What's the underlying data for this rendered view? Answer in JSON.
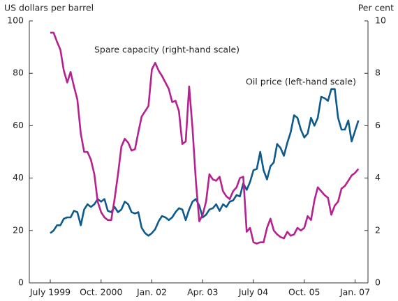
{
  "chart_data": {
    "type": "line",
    "y_label": "US dollars per barrel",
    "y2_label": "Per cent",
    "annotations": [
      "Spare capacity (right-hand scale)",
      "Oil price (left-hand scale)"
    ],
    "categories": [
      "July 1999",
      null,
      null,
      null,
      null,
      null,
      null,
      null,
      null,
      null,
      null,
      null,
      null,
      null,
      null,
      "Oct. 2000",
      null,
      null,
      null,
      null,
      null,
      null,
      null,
      null,
      null,
      null,
      null,
      null,
      null,
      null,
      "Jan. 02",
      null,
      null,
      null,
      null,
      null,
      null,
      null,
      null,
      null,
      null,
      null,
      null,
      null,
      null,
      "Apr. 03",
      null,
      null,
      null,
      null,
      null,
      null,
      null,
      null,
      null,
      null,
      null,
      null,
      null,
      null,
      "July 04",
      null,
      null,
      null,
      null,
      null,
      null,
      null,
      null,
      null,
      null,
      null,
      null,
      null,
      null,
      "Oct. 05",
      null,
      null,
      null,
      null,
      null,
      null,
      null,
      null,
      null,
      null,
      null,
      null,
      null,
      null,
      "Jan. 07",
      null
    ],
    "series": [
      {
        "name": "Oil price (left-hand scale)",
        "color": "#0f5a8c",
        "axis": "y",
        "values": [
          19,
          20,
          22,
          22,
          24.5,
          25,
          25,
          27.5,
          27,
          22,
          28,
          30,
          29,
          30,
          32,
          31,
          32,
          27.5,
          27,
          29,
          27,
          28,
          31,
          30,
          27,
          26.5,
          27,
          21,
          19,
          18,
          19,
          20.5,
          23.5,
          25.5,
          25,
          24,
          25,
          27,
          28.5,
          28,
          24,
          28,
          31,
          32,
          29.5,
          25,
          26,
          28,
          28.5,
          30,
          27.5,
          30,
          29,
          31,
          31.5,
          33.5,
          33,
          38,
          35.5,
          38.5,
          43,
          43.5,
          50,
          43,
          39.5,
          44.5,
          46,
          53,
          51.5,
          48.5,
          53.5,
          57.5,
          64,
          63,
          58.5,
          55.5,
          57,
          63,
          60,
          63,
          71,
          70.5,
          69.5,
          74,
          74,
          63,
          58.5,
          58.5,
          62,
          54,
          58,
          62
        ]
      },
      {
        "name": "Spare capacity (right-hand scale)",
        "color": "#b5218f",
        "axis": "y2",
        "values": [
          9.55,
          9.55,
          9.2,
          8.9,
          8.1,
          7.65,
          8.05,
          7.5,
          7.0,
          5.7,
          5.0,
          5.0,
          4.7,
          4.15,
          3.1,
          2.7,
          2.5,
          2.4,
          2.4,
          3.2,
          4.15,
          5.2,
          5.5,
          5.35,
          5.05,
          5.1,
          5.75,
          6.35,
          6.55,
          6.75,
          8.15,
          8.4,
          8.1,
          7.9,
          7.65,
          7.4,
          6.9,
          6.95,
          6.55,
          5.3,
          5.4,
          7.5,
          5.9,
          3.9,
          2.35,
          2.6,
          3.1,
          4.15,
          3.95,
          3.9,
          4.05,
          3.5,
          3.3,
          3.2,
          3.5,
          3.65,
          4.0,
          4.05,
          1.95,
          2.1,
          1.55,
          1.5,
          1.55,
          1.55,
          2.1,
          2.45,
          2.0,
          1.85,
          1.75,
          1.7,
          1.95,
          1.8,
          1.85,
          2.1,
          2.0,
          2.1,
          2.55,
          2.4,
          3.15,
          3.65,
          3.5,
          3.35,
          3.25,
          2.6,
          2.95,
          3.1,
          3.6,
          3.7,
          3.9,
          4.1,
          4.2,
          4.35
        ]
      }
    ],
    "ylim": [
      0,
      100
    ],
    "yticks": [
      0,
      20,
      40,
      60,
      80,
      100
    ],
    "y2lim": [
      0,
      10
    ],
    "y2ticks": [
      0,
      2,
      4,
      6,
      8,
      10
    ],
    "grid": false
  }
}
